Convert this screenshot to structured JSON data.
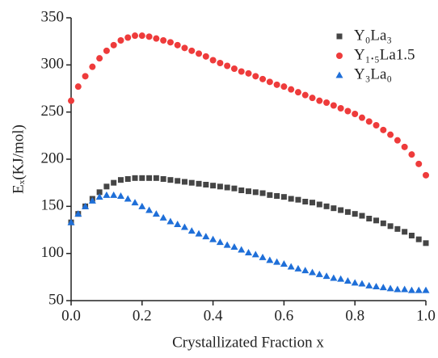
{
  "chart_data": {
    "type": "scatter",
    "x_label": "Crystallizated Fraction x",
    "y_label": "Eₓ(KJ/mol)",
    "x": [
      0,
      0.02,
      0.04,
      0.06,
      0.08,
      0.1,
      0.12,
      0.14,
      0.16,
      0.18,
      0.2,
      0.22,
      0.24,
      0.26,
      0.28,
      0.3,
      0.32,
      0.34,
      0.36,
      0.38,
      0.4,
      0.42,
      0.44,
      0.46,
      0.48,
      0.5,
      0.52,
      0.54,
      0.56,
      0.58,
      0.6,
      0.62,
      0.64,
      0.66,
      0.68,
      0.7,
      0.72,
      0.74,
      0.76,
      0.78,
      0.8,
      0.82,
      0.84,
      0.86,
      0.88,
      0.9,
      0.92,
      0.94,
      0.96,
      0.98,
      1.0
    ],
    "series": [
      {
        "name": "Y₀La₃",
        "color": "#454545",
        "marker": "square",
        "values": [
          133,
          142,
          150,
          158,
          165,
          171,
          175,
          178,
          179,
          180,
          180,
          180,
          180,
          179,
          178,
          177,
          176,
          175,
          174,
          173,
          172,
          171,
          170,
          169,
          167,
          166,
          165,
          164,
          162,
          161,
          160,
          158,
          157,
          155,
          154,
          152,
          150,
          148,
          146,
          144,
          142,
          140,
          137,
          135,
          132,
          129,
          126,
          123,
          119,
          115,
          111
        ]
      },
      {
        "name": "Y₁.₅La1.5",
        "color": "#ee3b3b",
        "marker": "circle",
        "values": [
          262,
          277,
          288,
          298,
          307,
          315,
          321,
          326,
          329,
          331,
          331,
          330,
          328,
          326,
          324,
          321,
          318,
          315,
          312,
          309,
          305,
          302,
          299,
          296,
          293,
          291,
          288,
          285,
          282,
          279,
          277,
          274,
          271,
          268,
          265,
          262,
          260,
          257,
          254,
          251,
          248,
          244,
          240,
          236,
          231,
          226,
          220,
          213,
          205,
          195,
          183
        ]
      },
      {
        "name": "Y₃La₀",
        "color": "#1f6fd8",
        "marker": "triangle",
        "values": [
          133,
          142,
          150,
          156,
          160,
          162,
          162,
          161,
          158,
          154,
          150,
          146,
          142,
          138,
          134,
          131,
          128,
          124,
          121,
          118,
          115,
          112,
          109,
          107,
          104,
          101,
          99,
          96,
          93,
          91,
          89,
          86,
          84,
          82,
          80,
          78,
          76,
          74,
          73,
          71,
          69,
          68,
          66,
          65,
          64,
          63,
          62,
          62,
          61,
          61,
          61
        ]
      }
    ],
    "xlim": [
      0,
      1.0
    ],
    "xticks": [
      {
        "value": 0,
        "label": "0.0"
      },
      {
        "value": 0.2,
        "label": "0.2"
      },
      {
        "value": 0.4,
        "label": "0.4"
      },
      {
        "value": 0.6,
        "label": "0.6"
      },
      {
        "value": 0.8,
        "label": "0.8"
      },
      {
        "value": 1.0,
        "label": "1.0"
      }
    ],
    "ylim": [
      50,
      350
    ],
    "yticks": [
      50,
      100,
      150,
      200,
      250,
      300,
      350
    ],
    "legend": "upper-right"
  }
}
